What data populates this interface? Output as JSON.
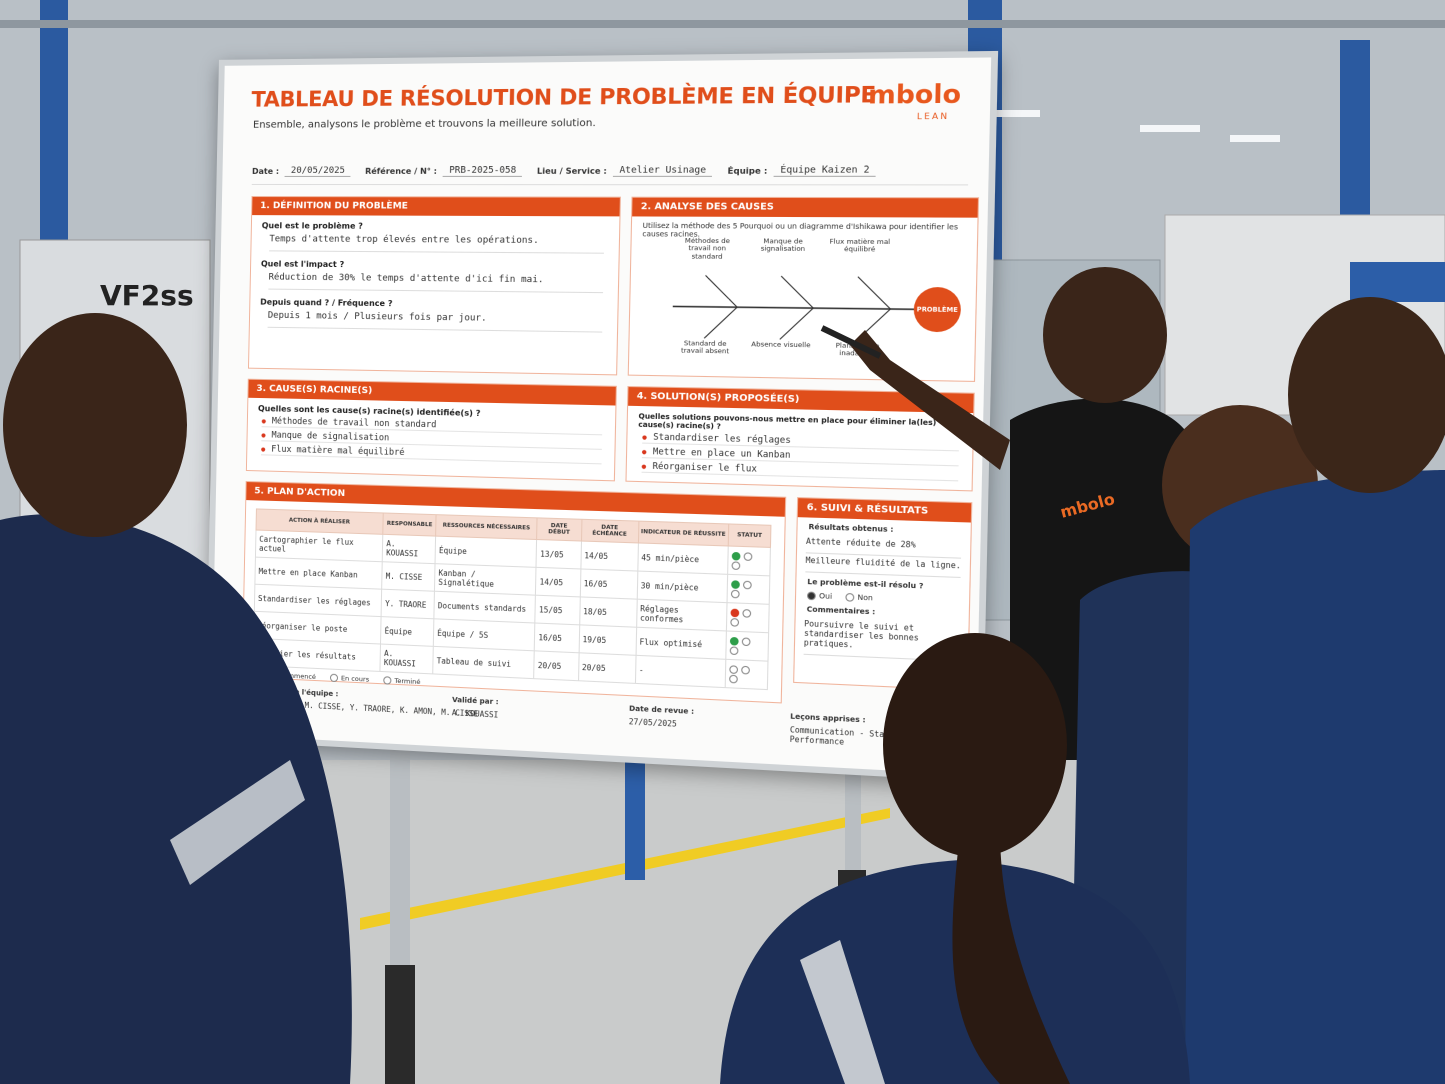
{
  "board": {
    "title": "TABLEAU DE RÉSOLUTION DE PROBLÈME EN ÉQUIPE",
    "subtitle": "Ensemble, analysons le problème et trouvons la meilleure solution.",
    "logo": {
      "name": "mbolo",
      "tagline": "LEAN"
    },
    "fields": [
      {
        "label": "Date :",
        "value": "20/05/2025"
      },
      {
        "label": "Référence / N° :",
        "value": "PRB-2025-058"
      },
      {
        "label": "Lieu / Service :",
        "value": "Atelier Usinage"
      },
      {
        "label": "Équipe :",
        "value": "Équipe Kaizen 2"
      }
    ],
    "problem_definition": {
      "heading": "1. DÉFINITION DU PROBLÈME",
      "items": [
        {
          "question": "Quel est le problème ?",
          "answer": "Temps d'attente trop élevés entre les opérations."
        },
        {
          "question": "Quel est l'impact ?",
          "answer": "Réduction de 30% le temps d'attente d'ici fin mai."
        },
        {
          "question": "Depuis quand ? / Fréquence ?",
          "answer": "Depuis 1 mois / Plusieurs fois par jour."
        }
      ]
    },
    "cause_analysis": {
      "heading": "2. ANALYSE DES CAUSES",
      "instruction": "Utilisez la méthode des 5 Pourquoi ou un diagramme d'Ishikawa pour identifier les causes racines.",
      "causes": [
        "Méthodes de travail non standard",
        "Manque de signalisation",
        "Flux matière mal équilibré",
        "Standard de travail absent",
        "Absence visuelle",
        "Planification inadaptée"
      ],
      "effect": "PROBLÈME"
    },
    "root_causes": {
      "heading": "3. CAUSE(S) RACINE(S)",
      "question": "Quelles sont les cause(s) racine(s) identifiée(s) ?",
      "items": [
        "Méthodes de travail non standard",
        "Manque de signalisation",
        "Flux matière mal équilibré"
      ]
    },
    "solutions": {
      "heading": "4. SOLUTION(S) PROPOSÉE(S)",
      "question": "Quelles solutions pouvons-nous mettre en place pour éliminer la(les) cause(s) racine(s) ?",
      "items": [
        "Standardiser les réglages",
        "Mettre en place un Kanban",
        "Réorganiser le flux"
      ]
    },
    "action_plan": {
      "heading": "5. PLAN D'ACTION",
      "columns": [
        "ACTION À RÉALISER",
        "RESPONSABLE",
        "RESSOURCES NÉCESSAIRES",
        "DATE DÉBUT",
        "DATE ÉCHÉANCE",
        "INDICATEUR DE RÉUSSITE",
        "STATUT"
      ],
      "rows": [
        [
          "Cartographier le flux actuel",
          "A. KOUASSI",
          "Équipe",
          "13/05",
          "14/05",
          "45 min/pièce"
        ],
        [
          "Mettre en place Kanban",
          "M. CISSE",
          "Kanban / Signalétique",
          "14/05",
          "16/05",
          "30 min/pièce"
        ],
        [
          "Standardiser les réglages",
          "Y. TRAORE",
          "Documents standards",
          "15/05",
          "18/05",
          "Réglages conformes"
        ],
        [
          "Réorganiser le poste",
          "Équipe",
          "Équipe / 5S",
          "16/05",
          "19/05",
          "Flux optimisé"
        ],
        [
          "Vérifier les résultats",
          "A. KOUASSI",
          "Tableau de suivi",
          "20/05",
          "20/05",
          "-"
        ]
      ],
      "status_colors": [
        "#2e9e4a",
        "#2e9e4a",
        "#d9381e",
        "#2e9e4a",
        null
      ],
      "legend": [
        "Non commencé",
        "En cours",
        "Terminé"
      ]
    },
    "results": {
      "heading": "6. SUIVI & RÉSULTATS",
      "results_label": "Résultats obtenus :",
      "results": [
        "Attente réduite de 28%",
        "Meilleure fluidité de la ligne."
      ],
      "resolved_question": "Le problème est-il résolu ?",
      "options": [
        "Oui",
        "Non"
      ],
      "comments_label": "Commentaires :",
      "comments": "Poursuivre le suivi et standardiser les bonnes pratiques."
    },
    "footer": [
      {
        "label": "Membres de l'équipe :",
        "value": "A. KOUASSI, M. CISSE, Y. TRAORE, K. AMON, M. CISSE"
      },
      {
        "label": "Validé par :",
        "value": "A. KOUASSI"
      },
      {
        "label": "Date de revue :",
        "value": "27/05/2025"
      },
      {
        "label": "Leçons apprises :",
        "value": "Communication - Standard - Performance"
      }
    ]
  },
  "scene": {
    "machine_label": "VF2ss",
    "shirt_logo": "mbolo"
  }
}
